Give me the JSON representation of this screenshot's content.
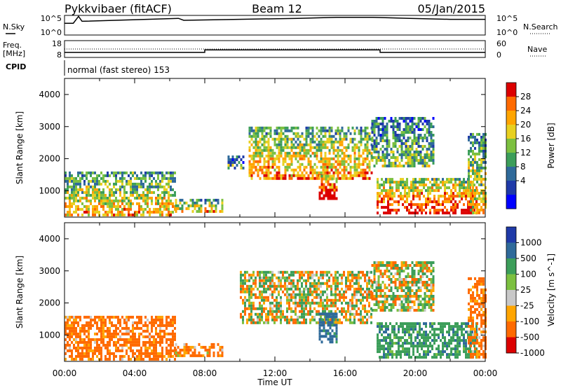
{
  "header": {
    "title": "Pykkvibaer (fitACF)",
    "beam": "Beam 12",
    "date": "05/Jan/2015"
  },
  "side_labels": {
    "nsky": "N.Sky",
    "freq_line1": "Freq.",
    "freq_line2": "[MHz]",
    "cpid": "CPID",
    "nsearch": "N.Search",
    "nave": "Nave",
    "cpid_value": "normal (fast stereo) 153"
  },
  "noise_axis": {
    "top": "10^5",
    "bottom": "10^0"
  },
  "freq_axis": {
    "left_ticks": [
      "18",
      "8"
    ],
    "right_ticks": [
      "60",
      "0"
    ]
  },
  "x_axis": {
    "label": "Time UT",
    "ticks": [
      "00:00",
      "04:00",
      "08:00",
      "12:00",
      "16:00",
      "20:00",
      "00:00"
    ]
  },
  "chart_data": [
    {
      "type": "line",
      "title": "N.Sky / N.Search",
      "x_units": "hours UT",
      "x": [
        0,
        0.5,
        0.8,
        1,
        6.5,
        6.8,
        13.3,
        15.5,
        17.6,
        19.7,
        22,
        24
      ],
      "values": [
        0.6,
        0.6,
        0.95,
        0.7,
        0.85,
        0.75,
        0.85,
        0.9,
        0.9,
        0.85,
        0.8,
        0.8
      ],
      "value_scale": "fraction of 10^0..10^5 log axis"
    },
    {
      "type": "line",
      "title": "Freq. / Nave",
      "series": [
        {
          "name": "Freq.",
          "x": [
            0,
            8,
            8,
            18,
            18,
            24
          ],
          "values": [
            11,
            11,
            12.5,
            12.5,
            11,
            11
          ]
        },
        {
          "name": "Nave",
          "x": [
            0,
            24
          ],
          "values": [
            30,
            30
          ]
        }
      ],
      "ylim_left": [
        8,
        18
      ],
      "ylim_right": [
        0,
        60
      ]
    },
    {
      "type": "heatmap",
      "ylabel": "Slant Range [km]",
      "xlabel": "Time UT",
      "xlim": [
        0,
        24
      ],
      "ylim": [
        180,
        4500
      ],
      "yticks": [
        1000,
        2000,
        3000,
        4000
      ],
      "colorbar": {
        "label": "Power [dB]",
        "ticks": [
          "28",
          "24",
          "20",
          "16",
          "12",
          "8",
          "4"
        ],
        "colors": [
          "#dc0000",
          "#ff6a00",
          "#ffa500",
          "#e8d020",
          "#7cc040",
          "#3c9e5a",
          "#2f6a9a",
          "#1f3aa8",
          "#0000ff"
        ]
      },
      "regions": [
        {
          "t0": 0.0,
          "t1": 6.3,
          "r0": 250,
          "r1": 1600,
          "level": 0.55
        },
        {
          "t0": 6.3,
          "t1": 9.0,
          "r0": 350,
          "r1": 750,
          "level": 0.55
        },
        {
          "t0": 9.3,
          "t1": 10.2,
          "r0": 1700,
          "r1": 2100,
          "level": 0.3
        },
        {
          "t0": 10.5,
          "t1": 17.5,
          "r0": 1400,
          "r1": 3000,
          "level": 0.6
        },
        {
          "t0": 14.5,
          "t1": 15.5,
          "r0": 800,
          "r1": 1500,
          "level": 0.85
        },
        {
          "t0": 17.5,
          "t1": 21.0,
          "r0": 1800,
          "r1": 3300,
          "level": 0.35
        },
        {
          "t0": 17.8,
          "t1": 23.5,
          "r0": 300,
          "r1": 1400,
          "level": 0.8
        },
        {
          "t0": 23.0,
          "t1": 24.0,
          "r0": 300,
          "r1": 2800,
          "level": 0.5
        }
      ]
    },
    {
      "type": "heatmap",
      "ylabel": "Slant Range [km]",
      "xlabel": "Time UT",
      "xlim": [
        0,
        24
      ],
      "ylim": [
        180,
        4500
      ],
      "yticks": [
        1000,
        2000,
        3000,
        4000
      ],
      "colorbar": {
        "label": "Velocity [m s^-1]",
        "ticks": [
          "1000",
          "500",
          "100",
          "25",
          "-25",
          "-100",
          "-500",
          "-1000"
        ],
        "colors": [
          "#1f3aa8",
          "#2f6a9a",
          "#3c9e5a",
          "#7cc040",
          "#c8c8c8",
          "#ffa500",
          "#ff6a00",
          "#dc0000"
        ]
      },
      "regions": [
        {
          "t0": 0.0,
          "t1": 6.3,
          "r0": 250,
          "r1": 1600,
          "velocity": -150
        },
        {
          "t0": 6.3,
          "t1": 9.0,
          "r0": 350,
          "r1": 750,
          "velocity": -120
        },
        {
          "t0": 10.0,
          "t1": 17.5,
          "r0": 1400,
          "r1": 3000,
          "velocity": 0
        },
        {
          "t0": 14.5,
          "t1": 15.5,
          "r0": 800,
          "r1": 1700,
          "velocity": 400
        },
        {
          "t0": 17.5,
          "t1": 21.0,
          "r0": 1800,
          "r1": 3300,
          "velocity": 0
        },
        {
          "t0": 17.8,
          "t1": 23.5,
          "r0": 300,
          "r1": 1400,
          "velocity": 200
        },
        {
          "t0": 23.0,
          "t1": 24.0,
          "r0": 300,
          "r1": 2800,
          "velocity": -150
        }
      ]
    }
  ]
}
